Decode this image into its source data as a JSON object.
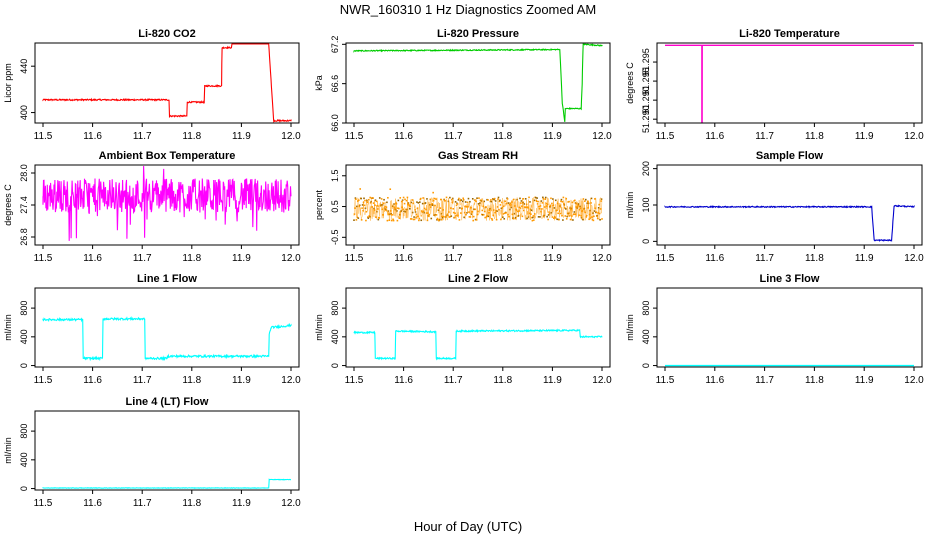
{
  "title": "NWR_160310  1 Hz Diagnostics Zoomed AM",
  "xlabel": "Hour of Day (UTC)",
  "colors": {
    "co2": "#ff0000",
    "pressure": "#00cc00",
    "temperature": "#ff00cc",
    "ambient": "#ff00ff",
    "rh": "#ff9900",
    "rh_point": "#996600",
    "sample_flow": "#0000cc",
    "line_flow": "#00ffff"
  },
  "chart_data": [
    {
      "id": "co2",
      "type": "line",
      "title": "Li-820 CO2",
      "ylabel": "Licor ppm",
      "xlim": [
        11.5,
        12.0
      ],
      "ylim": [
        391,
        460
      ],
      "xticks": [
        "11.5",
        "11.6",
        "11.7",
        "11.8",
        "11.9",
        "12.0"
      ],
      "yticks": [
        {
          "v": 400,
          "label": "400"
        },
        {
          "v": 440,
          "label": "440"
        }
      ],
      "color_key": "co2",
      "noise": 0.6,
      "series": [
        {
          "name": "CO2",
          "x": [
            11.5,
            11.754,
            11.755,
            11.79,
            11.791,
            11.825,
            11.826,
            11.86,
            11.861,
            11.88,
            11.881,
            11.915,
            11.916,
            11.955,
            11.965,
            12.0
          ],
          "y": [
            411,
            411,
            397,
            397,
            409,
            409,
            423,
            423,
            456,
            456,
            460,
            460,
            460,
            460,
            393,
            393
          ]
        }
      ]
    },
    {
      "id": "pressure",
      "type": "line",
      "title": "Li-820 Pressure",
      "ylabel": "kPa",
      "xlim": [
        11.5,
        12.0
      ],
      "ylim": [
        66.0,
        67.22
      ],
      "xticks": [
        "11.5",
        "11.6",
        "11.7",
        "11.8",
        "11.9",
        "12.0"
      ],
      "yticks": [
        {
          "v": 66.0,
          "label": "66.0"
        },
        {
          "v": 66.6,
          "label": "66.6"
        },
        {
          "v": 67.2,
          "label": "67.2"
        }
      ],
      "color_key": "pressure",
      "noise": 0.008,
      "series": [
        {
          "name": "Pressure",
          "x": [
            11.5,
            11.915,
            11.92,
            11.925,
            11.926,
            11.958,
            11.96,
            11.962,
            11.965,
            12.0
          ],
          "y": [
            67.1,
            67.12,
            66.3,
            66.02,
            66.22,
            66.22,
            66.6,
            67.2,
            67.2,
            67.18
          ]
        }
      ]
    },
    {
      "id": "temperature",
      "type": "line",
      "title": "Li-820 Temperature",
      "ylabel": "degrees C",
      "xlim": [
        11.5,
        12.0
      ],
      "ylim": [
        51.2895,
        51.3
      ],
      "xticks": [
        "11.5",
        "11.6",
        "11.7",
        "11.8",
        "11.9",
        "12.0"
      ],
      "yticks": [
        {
          "v": 51.29,
          "label": "51.290"
        },
        {
          "v": 51.2925,
          "label": "51.290"
        },
        {
          "v": 51.295,
          "label": "51.295"
        },
        {
          "v": 51.2975,
          "label": "51.295"
        }
      ],
      "color_key": "temperature",
      "noise": 0,
      "series": [
        {
          "name": "Temperature",
          "x": [
            11.5,
            11.574,
            11.5741,
            11.5745,
            11.5746,
            12.0
          ],
          "y": [
            51.2997,
            51.2997,
            51.2895,
            51.2895,
            51.2997,
            51.2997
          ]
        }
      ]
    },
    {
      "id": "ambient",
      "type": "line",
      "title": "Ambient Box Temperature",
      "ylabel": "degrees C",
      "xlim": [
        11.5,
        12.0
      ],
      "ylim": [
        26.65,
        28.15
      ],
      "xticks": [
        "11.5",
        "11.6",
        "11.7",
        "11.8",
        "11.9",
        "12.0"
      ],
      "yticks": [
        {
          "v": 26.8,
          "label": "26.8"
        },
        {
          "v": 27.4,
          "label": "27.4"
        },
        {
          "v": 28.0,
          "label": "28.0"
        }
      ],
      "color_key": "ambient",
      "noise": 0.32,
      "spiky": true,
      "series": [
        {
          "name": "Ambient",
          "x": [
            11.5,
            12.0
          ],
          "y": [
            27.58,
            27.58
          ]
        }
      ]
    },
    {
      "id": "rh",
      "type": "scatter",
      "title": "Gas Stream RH",
      "ylabel": "percent",
      "xlim": [
        11.5,
        12.0
      ],
      "ylim": [
        -0.75,
        1.85
      ],
      "xticks": [
        "11.5",
        "11.6",
        "11.7",
        "11.8",
        "11.9",
        "12.0"
      ],
      "yticks": [
        {
          "v": -0.5,
          "label": "-0.5"
        },
        {
          "v": 0.5,
          "label": "0.5"
        },
        {
          "v": 1.5,
          "label": "1.5"
        }
      ],
      "color_key": "rh",
      "noise": 0.38,
      "series": [
        {
          "name": "RH",
          "x": [
            11.5,
            12.0
          ],
          "y": [
            0.42,
            0.42
          ]
        }
      ]
    },
    {
      "id": "sample_flow",
      "type": "line",
      "title": "Sample Flow",
      "ylabel": "ml/min",
      "xlim": [
        11.5,
        12.0
      ],
      "ylim": [
        -10,
        210
      ],
      "xticks": [
        "11.5",
        "11.6",
        "11.7",
        "11.8",
        "11.9",
        "12.0"
      ],
      "yticks": [
        {
          "v": 0,
          "label": "0"
        },
        {
          "v": 100,
          "label": "100"
        },
        {
          "v": 200,
          "label": "200"
        }
      ],
      "color_key": "sample_flow",
      "noise": 1.5,
      "series": [
        {
          "name": "Sample Flow",
          "x": [
            11.5,
            11.915,
            11.92,
            11.955,
            11.96,
            12.0
          ],
          "y": [
            95,
            95,
            3,
            3,
            98,
            95
          ]
        }
      ]
    },
    {
      "id": "line1",
      "type": "line",
      "title": "Line 1 Flow",
      "ylabel": "ml/min",
      "xlim": [
        11.5,
        12.0
      ],
      "ylim": [
        -20,
        1080
      ],
      "xticks": [
        "11.5",
        "11.6",
        "11.7",
        "11.8",
        "11.9",
        "12.0"
      ],
      "yticks": [
        {
          "v": 0,
          "label": "0"
        },
        {
          "v": 400,
          "label": "400"
        },
        {
          "v": 800,
          "label": "800"
        }
      ],
      "color_key": "line_flow",
      "noise": 14,
      "series": [
        {
          "name": "Line 1",
          "x": [
            11.5,
            11.58,
            11.581,
            11.62,
            11.621,
            11.705,
            11.706,
            11.75,
            11.751,
            11.955,
            11.956,
            11.96,
            12.0
          ],
          "y": [
            640,
            640,
            100,
            100,
            650,
            650,
            100,
            100,
            130,
            130,
            430,
            530,
            560
          ]
        }
      ]
    },
    {
      "id": "line2",
      "type": "line",
      "title": "Line 2 Flow",
      "ylabel": "ml/min",
      "xlim": [
        11.5,
        12.0
      ],
      "ylim": [
        -20,
        1080
      ],
      "xticks": [
        "11.5",
        "11.6",
        "11.7",
        "11.8",
        "11.9",
        "12.0"
      ],
      "yticks": [
        {
          "v": 0,
          "label": "0"
        },
        {
          "v": 400,
          "label": "400"
        },
        {
          "v": 800,
          "label": "800"
        }
      ],
      "color_key": "line_flow",
      "noise": 10,
      "series": [
        {
          "name": "Line 2",
          "x": [
            11.5,
            11.542,
            11.543,
            11.583,
            11.584,
            11.665,
            11.666,
            11.705,
            11.706,
            11.955,
            11.956,
            12.0
          ],
          "y": [
            460,
            460,
            100,
            100,
            480,
            470,
            100,
            100,
            480,
            490,
            400,
            400
          ]
        }
      ]
    },
    {
      "id": "line3",
      "type": "line",
      "title": "Line 3 Flow",
      "ylabel": "ml/min",
      "xlim": [
        11.5,
        12.0
      ],
      "ylim": [
        -20,
        1080
      ],
      "xticks": [
        "11.5",
        "11.6",
        "11.7",
        "11.8",
        "11.9",
        "12.0"
      ],
      "yticks": [
        {
          "v": 0,
          "label": "0"
        },
        {
          "v": 400,
          "label": "400"
        },
        {
          "v": 800,
          "label": "800"
        }
      ],
      "color_key": "line_flow",
      "noise": 0,
      "series": [
        {
          "name": "Line 3",
          "x": [
            11.5,
            12.0
          ],
          "y": [
            0,
            0
          ]
        }
      ]
    },
    {
      "id": "line4",
      "type": "line",
      "title": "Line 4 (LT) Flow",
      "ylabel": "ml/min",
      "xlim": [
        11.5,
        12.0
      ],
      "ylim": [
        -20,
        1080
      ],
      "xticks": [
        "11.5",
        "11.6",
        "11.7",
        "11.8",
        "11.9",
        "12.0"
      ],
      "yticks": [
        {
          "v": 0,
          "label": "0"
        },
        {
          "v": 400,
          "label": "400"
        },
        {
          "v": 800,
          "label": "800"
        }
      ],
      "color_key": "line_flow",
      "noise": 3,
      "series": [
        {
          "name": "Line 4 (LT)",
          "x": [
            11.5,
            11.955,
            11.956,
            12.0
          ],
          "y": [
            8,
            8,
            125,
            125
          ]
        }
      ]
    }
  ]
}
